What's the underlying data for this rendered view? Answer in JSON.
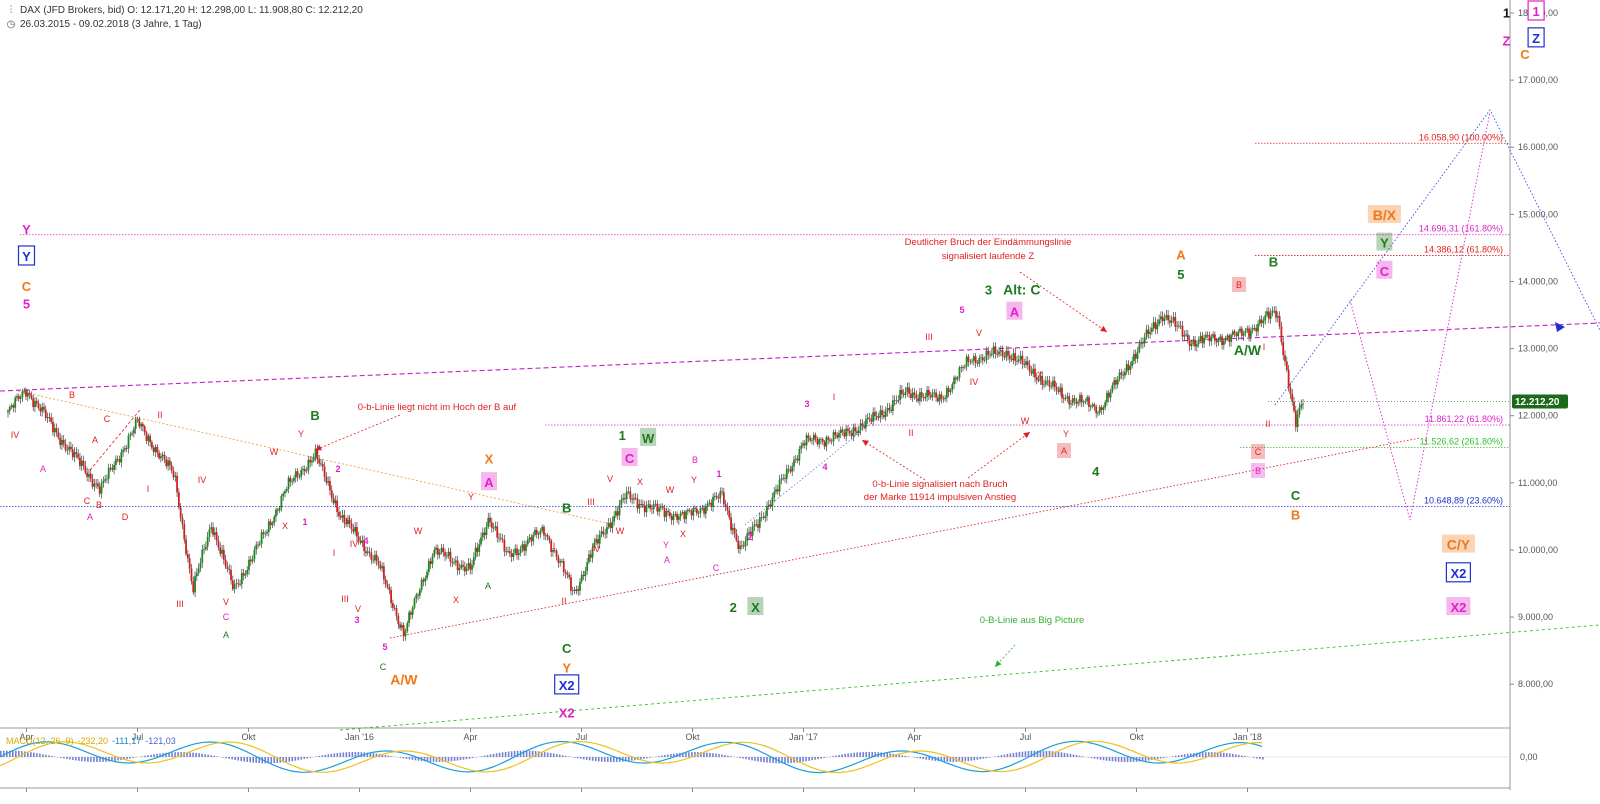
{
  "header": {
    "line1": "DAX (JFD Brokers, bid)  O: 12.171,20  H: 12.298,00  L: 11.908,80  C: 12.212,20",
    "line2": "26.03.2015 - 09.02.2018  (3 Jahre, 1 Tag)",
    "icon1": "bar-chart-icon",
    "icon2": "clock-icon"
  },
  "macd": {
    "label": "MACD(12, 26, 9)",
    "v1": "-232,20",
    "v2": "-111,17",
    "v3": "-121,03",
    "zero_label": "0,00"
  },
  "colors": {
    "green": "#1e7a1e",
    "magenta": "#e020c8",
    "orange": "#f07818",
    "red": "#e02020",
    "blue": "#2030d0",
    "price_tag": "#1a6a1a"
  },
  "chart_data": {
    "type": "candlestick",
    "instrument": "DAX (JFD Brokers, bid)",
    "period": "26.03.2015 - 09.02.2018",
    "ylim": [
      7500,
      18200
    ],
    "y_ticks": [
      8000,
      9000,
      10000,
      11000,
      12000,
      13000,
      14000,
      15000,
      16000,
      17000,
      18000
    ],
    "y_tick_labels": [
      "8.000,00",
      "9.000,00",
      "10.000,00",
      "11.000,00",
      "12.000,00",
      "13.000,00",
      "14.000,00",
      "15.000,00",
      "16.000,00",
      "17.000,00",
      "18.000,00"
    ],
    "x_ticks": [
      {
        "t": 0.5,
        "label": "Apr"
      },
      {
        "t": 3.5,
        "label": "Jul"
      },
      {
        "t": 6.5,
        "label": "Okt"
      },
      {
        "t": 9.5,
        "label": "Jan '16"
      },
      {
        "t": 12.5,
        "label": "Apr"
      },
      {
        "t": 15.5,
        "label": "Jul"
      },
      {
        "t": 18.5,
        "label": "Okt"
      },
      {
        "t": 21.5,
        "label": "Jan '17"
      },
      {
        "t": 24.5,
        "label": "Apr"
      },
      {
        "t": 27.5,
        "label": "Jul"
      },
      {
        "t": 30.5,
        "label": "Okt"
      },
      {
        "t": 33.5,
        "label": "Jan '18"
      }
    ],
    "price_path": [
      [
        0,
        12050
      ],
      [
        0.5,
        12390
      ],
      [
        1.5,
        11600
      ],
      [
        2.5,
        10900
      ],
      [
        3.5,
        11900
      ],
      [
        4.5,
        11100
      ],
      [
        5.0,
        9400
      ],
      [
        5.5,
        10400
      ],
      [
        6.1,
        9400
      ],
      [
        7.0,
        10300
      ],
      [
        7.5,
        10900
      ],
      [
        8.3,
        11430
      ],
      [
        9.0,
        10500
      ],
      [
        10.0,
        9800
      ],
      [
        10.7,
        8750
      ],
      [
        11.5,
        10000
      ],
      [
        12.5,
        9700
      ],
      [
        13.0,
        10500
      ],
      [
        13.5,
        9900
      ],
      [
        14.5,
        10300
      ],
      [
        15.3,
        9350
      ],
      [
        15.8,
        10000
      ],
      [
        16.7,
        10800
      ],
      [
        17.5,
        10600
      ],
      [
        18.3,
        10500
      ],
      [
        19.3,
        10800
      ],
      [
        19.8,
        10000
      ],
      [
        20.7,
        10800
      ],
      [
        21.5,
        11600
      ],
      [
        22.5,
        11700
      ],
      [
        23.4,
        11950
      ],
      [
        24.3,
        12350
      ],
      [
        25.2,
        12250
      ],
      [
        26.0,
        12840
      ],
      [
        27.0,
        12950
      ],
      [
        28.5,
        12300
      ],
      [
        29.5,
        12100
      ],
      [
        30.5,
        12950
      ],
      [
        31.2,
        13520
      ],
      [
        32.0,
        13100
      ],
      [
        33.3,
        13200
      ],
      [
        34.3,
        13550
      ],
      [
        34.8,
        11860
      ],
      [
        35.0,
        12210
      ]
    ],
    "last_price": 12212.2,
    "last_price_label": "12.212,20",
    "fib_levels": [
      {
        "value": 16058.9,
        "label": "16.058,90 (100.00%)",
        "color": "#e02020"
      },
      {
        "value": 14696.31,
        "label": "14.696,31 (161.80%)",
        "color": "#e020c8"
      },
      {
        "value": 14386.12,
        "label": "14.386,12 (61.80%)",
        "color": "#e02020"
      },
      {
        "value": 11861.22,
        "label": "11.861,22 (61.80%)",
        "color": "#e020c8"
      },
      {
        "value": 11526.62,
        "label": "11.526,62 (261.80%)",
        "color": "#30c030"
      },
      {
        "value": 10648.89,
        "label": "10.648,89 (23.60%)",
        "color": "#2030d0"
      }
    ],
    "annotations": [
      {
        "text": "0-b-Linie liegt nicht im Hoch der B auf"
      },
      {
        "text": "Deutlicher Bruch der Eindämmungslinie"
      },
      {
        "text": "signalisiert laufende Z"
      },
      {
        "text": "0-b-Linie signalisiert nach Bruch"
      },
      {
        "text": "der Marke 11914 impulsiven Anstieg"
      },
      {
        "text": "0-B-Linie aus Big Picture"
      }
    ],
    "wave_labels": [
      {
        "text": "Y",
        "t": 0.5,
        "v": 14750,
        "color": "#e020c8",
        "box": "none"
      },
      {
        "text": "Y",
        "t": 0.5,
        "v": 14350,
        "color": "#2030d0",
        "box": "outline"
      },
      {
        "text": "C",
        "t": 0.5,
        "v": 13900,
        "color": "#f07818",
        "box": "none"
      },
      {
        "text": "5",
        "t": 0.5,
        "v": 13640,
        "color": "#e020c8",
        "box": "none"
      },
      {
        "text": "B",
        "t": 8.3,
        "v": 11980,
        "color": "#1e7a1e",
        "box": "none"
      },
      {
        "text": "A/W",
        "t": 10.7,
        "v": 8040,
        "color": "#f07818",
        "box": "none"
      },
      {
        "text": "X",
        "t": 13.0,
        "v": 11330,
        "color": "#f07818",
        "box": "none"
      },
      {
        "text": "A",
        "t": 13.0,
        "v": 10980,
        "color": "#e020c8",
        "box": "fill"
      },
      {
        "text": "B",
        "t": 15.1,
        "v": 10600,
        "color": "#1e7a1e",
        "box": "none"
      },
      {
        "text": "C",
        "t": 15.1,
        "v": 8510,
        "color": "#1e7a1e",
        "box": "none"
      },
      {
        "text": "Y",
        "t": 15.1,
        "v": 8220,
        "color": "#f07818",
        "box": "none"
      },
      {
        "text": "X2",
        "t": 15.1,
        "v": 7960,
        "color": "#2030d0",
        "box": "outline"
      },
      {
        "text": "X2",
        "t": 15.1,
        "v": 7550,
        "color": "#e020c8",
        "box": "none"
      },
      {
        "text": "1",
        "t": 16.6,
        "v": 11680,
        "color": "#1e7a1e",
        "box": "none"
      },
      {
        "text": "W",
        "t": 17.3,
        "v": 11640,
        "color": "#1e7a1e",
        "box": "fill"
      },
      {
        "text": "C",
        "t": 16.8,
        "v": 11340,
        "color": "#e020c8",
        "box": "fill"
      },
      {
        "text": "2",
        "t": 19.6,
        "v": 9120,
        "color": "#1e7a1e",
        "box": "none"
      },
      {
        "text": "X",
        "t": 20.2,
        "v": 9120,
        "color": "#1e7a1e",
        "box": "fill"
      },
      {
        "text": "3",
        "t": 26.5,
        "v": 13850,
        "color": "#1e7a1e",
        "box": "none"
      },
      {
        "text": "Alt: C",
        "t": 27.4,
        "v": 13850,
        "color": "#1e7a1e",
        "box": "none"
      },
      {
        "text": "A",
        "t": 27.2,
        "v": 13520,
        "color": "#e020c8",
        "box": "fill"
      },
      {
        "text": "4",
        "t": 29.4,
        "v": 11150,
        "color": "#1e7a1e",
        "box": "none"
      },
      {
        "text": "A",
        "t": 31.7,
        "v": 14370,
        "color": "#f07818",
        "box": "none"
      },
      {
        "text": "5",
        "t": 31.7,
        "v": 14080,
        "color": "#1e7a1e",
        "box": "none"
      },
      {
        "text": "B",
        "t": 34.2,
        "v": 14270,
        "color": "#1e7a1e",
        "box": "none"
      },
      {
        "text": "A/W",
        "t": 33.5,
        "v": 12950,
        "color": "#1e7a1e",
        "box": "none"
      },
      {
        "text": "C",
        "t": 34.8,
        "v": 10790,
        "color": "#1e7a1e",
        "box": "none"
      },
      {
        "text": "B",
        "t": 34.8,
        "v": 10500,
        "color": "#f07818",
        "box": "none"
      },
      {
        "text": "B/X",
        "t": 37.2,
        "v": 14960,
        "color": "#f07818",
        "box": "fill"
      },
      {
        "text": "Y",
        "t": 37.2,
        "v": 14550,
        "color": "#1e7a1e",
        "box": "fill"
      },
      {
        "text": "C",
        "t": 37.2,
        "v": 14130,
        "color": "#e020c8",
        "box": "fill"
      },
      {
        "text": "C/Y",
        "t": 39.2,
        "v": 10050,
        "color": "#f07818",
        "box": "fill"
      },
      {
        "text": "X2",
        "t": 39.2,
        "v": 9630,
        "color": "#2030d0",
        "box": "outline"
      },
      {
        "text": "X2",
        "t": 39.2,
        "v": 9120,
        "color": "#e020c8",
        "box": "fill"
      },
      {
        "text": "C",
        "t": 41.0,
        "v": 17360,
        "color": "#f07818",
        "box": "none"
      },
      {
        "text": "1",
        "t": 40.5,
        "v": 17980,
        "color": "#111111",
        "box": "none"
      },
      {
        "text": "1",
        "t": 41.3,
        "v": 18000,
        "color": "#e020c8",
        "box": "outline"
      },
      {
        "text": "Z",
        "t": 40.5,
        "v": 17560,
        "color": "#e020c8",
        "box": "none"
      },
      {
        "text": "Z",
        "t": 41.3,
        "v": 17600,
        "color": "#2030d0",
        "box": "outline"
      }
    ]
  }
}
